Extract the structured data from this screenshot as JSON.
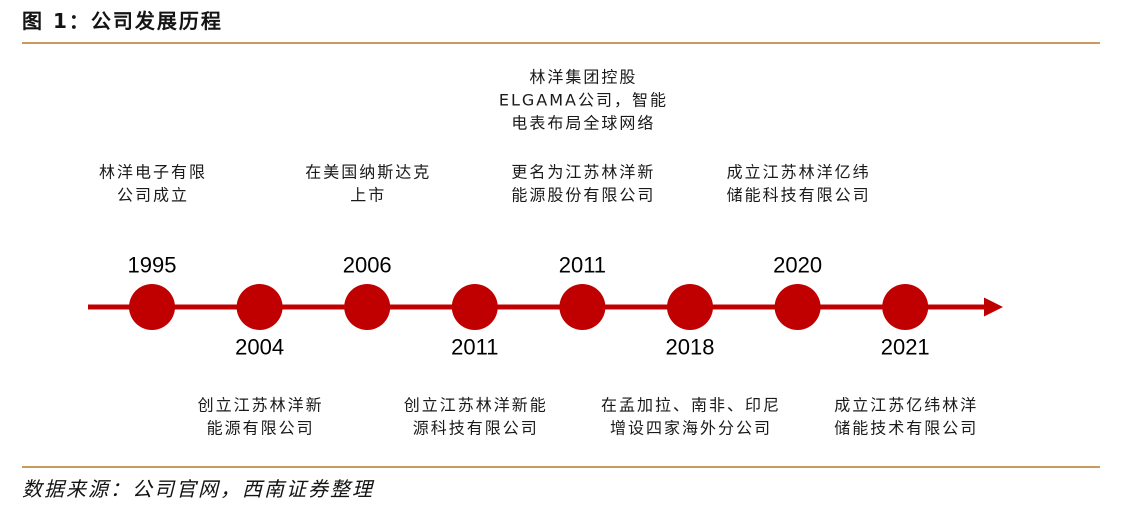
{
  "title": "图 1：公司发展历程",
  "source": "数据来源：公司官网，西南证券整理",
  "colors": {
    "timeline": "#C00000",
    "rule": "#C99A5E"
  },
  "milestones": [
    {
      "year": "1995",
      "events": [
        {
          "lines": [
            "林洋电子有限",
            "公司成立"
          ]
        }
      ]
    },
    {
      "year": "2004",
      "events": [
        {
          "lines": [
            "创立江苏林洋新",
            "能源有限公司"
          ]
        }
      ]
    },
    {
      "year": "2006",
      "events": [
        {
          "lines": [
            "在美国纳斯达克",
            "上市"
          ]
        }
      ]
    },
    {
      "year": "2011",
      "events": [
        {
          "lines": [
            "创立江苏林洋新能",
            "源科技有限公司"
          ]
        }
      ]
    },
    {
      "year": "2011",
      "events": [
        {
          "lines": [
            "林洋集团控股",
            "ELGAMA公司，智能",
            "电表布局全球网络"
          ]
        },
        {
          "lines": [
            "更名为江苏林洋新",
            "能源股份有限公司"
          ]
        }
      ]
    },
    {
      "year": "2018",
      "events": [
        {
          "lines": [
            "在孟加拉、南非、印尼",
            "增设四家海外分公司"
          ]
        }
      ]
    },
    {
      "year": "2020",
      "events": [
        {
          "lines": [
            "成立江苏林洋亿纬",
            "储能科技有限公司"
          ]
        }
      ]
    },
    {
      "year": "2021",
      "events": [
        {
          "lines": [
            "成立江苏亿纬林洋",
            "储能技术有限公司"
          ]
        }
      ]
    }
  ]
}
